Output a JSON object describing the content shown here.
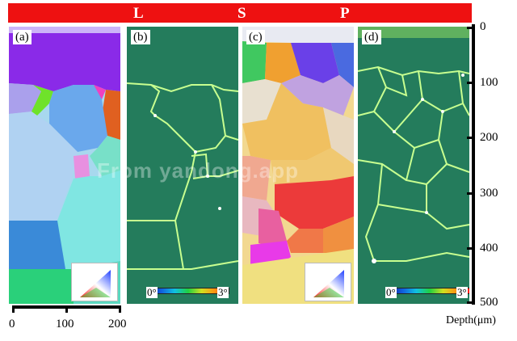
{
  "banner": {
    "letters": [
      "L",
      "S",
      "P"
    ],
    "color": "#ee1111"
  },
  "panels": [
    {
      "label": "(a)",
      "type": "ipf-orientation-map",
      "has_ipf_triangle": true
    },
    {
      "label": "(b)",
      "type": "kam-map",
      "colorbar": {
        "min": "0°",
        "max": "3°"
      }
    },
    {
      "label": "(c)",
      "type": "ipf-orientation-map",
      "has_ipf_triangle": true
    },
    {
      "label": "(d)",
      "type": "kam-map",
      "colorbar": {
        "min": "0°",
        "max": "3°"
      }
    }
  ],
  "scale": {
    "ticks": [
      "0",
      "100",
      "200"
    ]
  },
  "depth_axis": {
    "ticks": [
      "0",
      "100",
      "200",
      "300",
      "400",
      "500"
    ],
    "title": "Depth(μm)"
  },
  "watermark": "From yandong.app"
}
